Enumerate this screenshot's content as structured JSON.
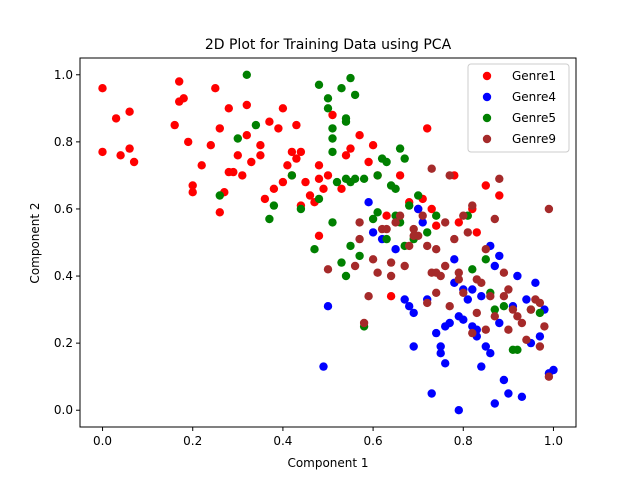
{
  "chart_data": {
    "type": "scatter",
    "title": "2D Plot for Training Data using PCA",
    "xlabel": "Component 1",
    "ylabel": "Component 2",
    "xlim": [
      -0.05,
      1.05
    ],
    "ylim": [
      -0.05,
      1.05
    ],
    "xticks": [
      "0.0",
      "0.2",
      "0.4",
      "0.6",
      "0.8",
      "1.0"
    ],
    "yticks": [
      "0.0",
      "0.2",
      "0.4",
      "0.6",
      "0.8",
      "1.0"
    ],
    "grid": false,
    "legend_position": "top-right",
    "series": [
      {
        "name": "Genre1",
        "color": "#ff0000",
        "points": [
          [
            0.0,
            0.96
          ],
          [
            0.0,
            0.77
          ],
          [
            0.03,
            0.87
          ],
          [
            0.04,
            0.76
          ],
          [
            0.06,
            0.89
          ],
          [
            0.06,
            0.78
          ],
          [
            0.07,
            0.74
          ],
          [
            0.16,
            0.85
          ],
          [
            0.17,
            0.98
          ],
          [
            0.17,
            0.92
          ],
          [
            0.18,
            0.93
          ],
          [
            0.19,
            0.8
          ],
          [
            0.2,
            0.67
          ],
          [
            0.2,
            0.65
          ],
          [
            0.22,
            0.73
          ],
          [
            0.24,
            0.79
          ],
          [
            0.25,
            0.96
          ],
          [
            0.26,
            0.84
          ],
          [
            0.26,
            0.59
          ],
          [
            0.27,
            0.65
          ],
          [
            0.28,
            0.71
          ],
          [
            0.28,
            0.9
          ],
          [
            0.29,
            0.71
          ],
          [
            0.3,
            0.76
          ],
          [
            0.31,
            0.7
          ],
          [
            0.32,
            0.91
          ],
          [
            0.32,
            0.82
          ],
          [
            0.33,
            0.74
          ],
          [
            0.35,
            0.79
          ],
          [
            0.35,
            0.76
          ],
          [
            0.36,
            0.63
          ],
          [
            0.37,
            0.86
          ],
          [
            0.38,
            0.66
          ],
          [
            0.39,
            0.84
          ],
          [
            0.4,
            0.68
          ],
          [
            0.4,
            0.9
          ],
          [
            0.41,
            0.73
          ],
          [
            0.42,
            0.77
          ],
          [
            0.42,
            0.7
          ],
          [
            0.43,
            0.75
          ],
          [
            0.43,
            0.85
          ],
          [
            0.44,
            0.61
          ],
          [
            0.44,
            0.77
          ],
          [
            0.45,
            0.68
          ],
          [
            0.46,
            0.64
          ],
          [
            0.47,
            0.62
          ],
          [
            0.48,
            0.73
          ],
          [
            0.48,
            0.69
          ],
          [
            0.49,
            0.66
          ],
          [
            0.5,
            0.7
          ],
          [
            0.51,
            0.88
          ],
          [
            0.53,
            0.66
          ],
          [
            0.54,
            0.76
          ],
          [
            0.55,
            0.78
          ],
          [
            0.57,
            0.82
          ],
          [
            0.59,
            0.74
          ],
          [
            0.6,
            0.79
          ],
          [
            0.61,
            0.7
          ],
          [
            0.63,
            0.58
          ],
          [
            0.64,
            0.34
          ],
          [
            0.66,
            0.7
          ],
          [
            0.68,
            0.62
          ],
          [
            0.7,
            0.6
          ],
          [
            0.71,
            0.63
          ],
          [
            0.72,
            0.84
          ],
          [
            0.73,
            0.6
          ],
          [
            0.74,
            0.55
          ],
          [
            0.78,
            0.7
          ],
          [
            0.79,
            0.56
          ],
          [
            0.82,
            0.6
          ],
          [
            0.83,
            0.53
          ],
          [
            0.85,
            0.67
          ],
          [
            0.88,
            0.64
          ],
          [
            0.48,
            0.52
          ]
        ]
      },
      {
        "name": "Genre4",
        "color": "#0000ff",
        "points": [
          [
            0.49,
            0.13
          ],
          [
            0.5,
            0.31
          ],
          [
            0.59,
            0.62
          ],
          [
            0.6,
            0.53
          ],
          [
            0.62,
            0.51
          ],
          [
            0.65,
            0.48
          ],
          [
            0.67,
            0.33
          ],
          [
            0.68,
            0.31
          ],
          [
            0.69,
            0.29
          ],
          [
            0.69,
            0.19
          ],
          [
            0.7,
            0.6
          ],
          [
            0.71,
            0.56
          ],
          [
            0.72,
            0.33
          ],
          [
            0.73,
            0.05
          ],
          [
            0.74,
            0.23
          ],
          [
            0.75,
            0.19
          ],
          [
            0.75,
            0.17
          ],
          [
            0.76,
            0.14
          ],
          [
            0.76,
            0.25
          ],
          [
            0.77,
            0.26
          ],
          [
            0.78,
            0.45
          ],
          [
            0.78,
            0.38
          ],
          [
            0.79,
            0.28
          ],
          [
            0.79,
            0.0
          ],
          [
            0.8,
            0.27
          ],
          [
            0.8,
            0.36
          ],
          [
            0.81,
            0.33
          ],
          [
            0.82,
            0.25
          ],
          [
            0.83,
            0.24
          ],
          [
            0.83,
            0.22
          ],
          [
            0.84,
            0.13
          ],
          [
            0.85,
            0.19
          ],
          [
            0.86,
            0.49
          ],
          [
            0.86,
            0.17
          ],
          [
            0.87,
            0.43
          ],
          [
            0.87,
            0.02
          ],
          [
            0.88,
            0.26
          ],
          [
            0.89,
            0.09
          ],
          [
            0.9,
            0.05
          ],
          [
            0.91,
            0.31
          ],
          [
            0.92,
            0.4
          ],
          [
            0.93,
            0.04
          ],
          [
            0.94,
            0.33
          ],
          [
            0.95,
            0.2
          ],
          [
            0.96,
            0.38
          ],
          [
            0.97,
            0.22
          ],
          [
            0.98,
            0.3
          ],
          [
            1.0,
            0.12
          ],
          [
            0.99,
            0.11
          ],
          [
            0.82,
            0.36
          ],
          [
            0.84,
            0.34
          ],
          [
            0.88,
            0.46
          ]
        ]
      },
      {
        "name": "Genre5",
        "color": "#008000",
        "points": [
          [
            0.26,
            0.64
          ],
          [
            0.3,
            0.81
          ],
          [
            0.32,
            1.0
          ],
          [
            0.34,
            0.85
          ],
          [
            0.37,
            0.57
          ],
          [
            0.38,
            0.61
          ],
          [
            0.42,
            0.7
          ],
          [
            0.44,
            0.6
          ],
          [
            0.47,
            0.48
          ],
          [
            0.48,
            0.63
          ],
          [
            0.48,
            0.97
          ],
          [
            0.5,
            0.93
          ],
          [
            0.5,
            0.9
          ],
          [
            0.51,
            0.77
          ],
          [
            0.51,
            0.81
          ],
          [
            0.51,
            0.84
          ],
          [
            0.51,
            0.56
          ],
          [
            0.52,
            0.68
          ],
          [
            0.53,
            0.44
          ],
          [
            0.53,
            0.96
          ],
          [
            0.54,
            0.87
          ],
          [
            0.54,
            0.86
          ],
          [
            0.54,
            0.69
          ],
          [
            0.54,
            0.4
          ],
          [
            0.55,
            0.68
          ],
          [
            0.55,
            0.99
          ],
          [
            0.55,
            0.49
          ],
          [
            0.56,
            0.94
          ],
          [
            0.56,
            0.69
          ],
          [
            0.57,
            0.46
          ],
          [
            0.58,
            0.25
          ],
          [
            0.58,
            0.69
          ],
          [
            0.6,
            0.57
          ],
          [
            0.61,
            0.7
          ],
          [
            0.61,
            0.59
          ],
          [
            0.62,
            0.75
          ],
          [
            0.63,
            0.74
          ],
          [
            0.63,
            0.51
          ],
          [
            0.64,
            0.67
          ],
          [
            0.65,
            0.66
          ],
          [
            0.65,
            0.58
          ],
          [
            0.66,
            0.56
          ],
          [
            0.66,
            0.78
          ],
          [
            0.67,
            0.75
          ],
          [
            0.67,
            0.49
          ],
          [
            0.68,
            0.61
          ],
          [
            0.69,
            0.51
          ],
          [
            0.7,
            0.64
          ],
          [
            0.72,
            0.53
          ],
          [
            0.74,
            0.58
          ],
          [
            0.81,
            0.58
          ],
          [
            0.82,
            0.42
          ],
          [
            0.85,
            0.45
          ],
          [
            0.87,
            0.3
          ],
          [
            0.89,
            0.31
          ],
          [
            0.91,
            0.18
          ],
          [
            0.92,
            0.18
          ],
          [
            0.97,
            0.29
          ],
          [
            0.95,
            0.3
          ],
          [
            0.86,
            0.35
          ]
        ]
      },
      {
        "name": "Genre9",
        "color": "#a52a2a",
        "points": [
          [
            0.5,
            0.42
          ],
          [
            0.56,
            0.43
          ],
          [
            0.57,
            0.56
          ],
          [
            0.57,
            0.51
          ],
          [
            0.58,
            0.26
          ],
          [
            0.59,
            0.34
          ],
          [
            0.6,
            0.45
          ],
          [
            0.61,
            0.41
          ],
          [
            0.62,
            0.54
          ],
          [
            0.63,
            0.54
          ],
          [
            0.64,
            0.44
          ],
          [
            0.64,
            0.4
          ],
          [
            0.65,
            0.56
          ],
          [
            0.66,
            0.58
          ],
          [
            0.67,
            0.43
          ],
          [
            0.68,
            0.49
          ],
          [
            0.69,
            0.54
          ],
          [
            0.69,
            0.52
          ],
          [
            0.7,
            0.52
          ],
          [
            0.71,
            0.58
          ],
          [
            0.72,
            0.32
          ],
          [
            0.72,
            0.49
          ],
          [
            0.73,
            0.41
          ],
          [
            0.73,
            0.72
          ],
          [
            0.74,
            0.35
          ],
          [
            0.74,
            0.48
          ],
          [
            0.75,
            0.4
          ],
          [
            0.76,
            0.43
          ],
          [
            0.76,
            0.56
          ],
          [
            0.77,
            0.31
          ],
          [
            0.78,
            0.51
          ],
          [
            0.79,
            0.41
          ],
          [
            0.79,
            0.39
          ],
          [
            0.8,
            0.58
          ],
          [
            0.8,
            0.35
          ],
          [
            0.81,
            0.53
          ],
          [
            0.82,
            0.61
          ],
          [
            0.82,
            0.23
          ],
          [
            0.83,
            0.39
          ],
          [
            0.83,
            0.29
          ],
          [
            0.84,
            0.38
          ],
          [
            0.85,
            0.48
          ],
          [
            0.85,
            0.24
          ],
          [
            0.86,
            0.34
          ],
          [
            0.87,
            0.28
          ],
          [
            0.87,
            0.57
          ],
          [
            0.88,
            0.69
          ],
          [
            0.89,
            0.41
          ],
          [
            0.89,
            0.34
          ],
          [
            0.9,
            0.24
          ],
          [
            0.9,
            0.36
          ],
          [
            0.91,
            0.3
          ],
          [
            0.92,
            0.28
          ],
          [
            0.93,
            0.26
          ],
          [
            0.94,
            0.21
          ],
          [
            0.95,
            0.3
          ],
          [
            0.96,
            0.33
          ],
          [
            0.97,
            0.19
          ],
          [
            0.97,
            0.32
          ],
          [
            0.98,
            0.25
          ],
          [
            0.99,
            0.6
          ],
          [
            0.99,
            0.1
          ],
          [
            0.74,
            0.41
          ],
          [
            0.77,
            0.7
          ]
        ]
      }
    ]
  }
}
